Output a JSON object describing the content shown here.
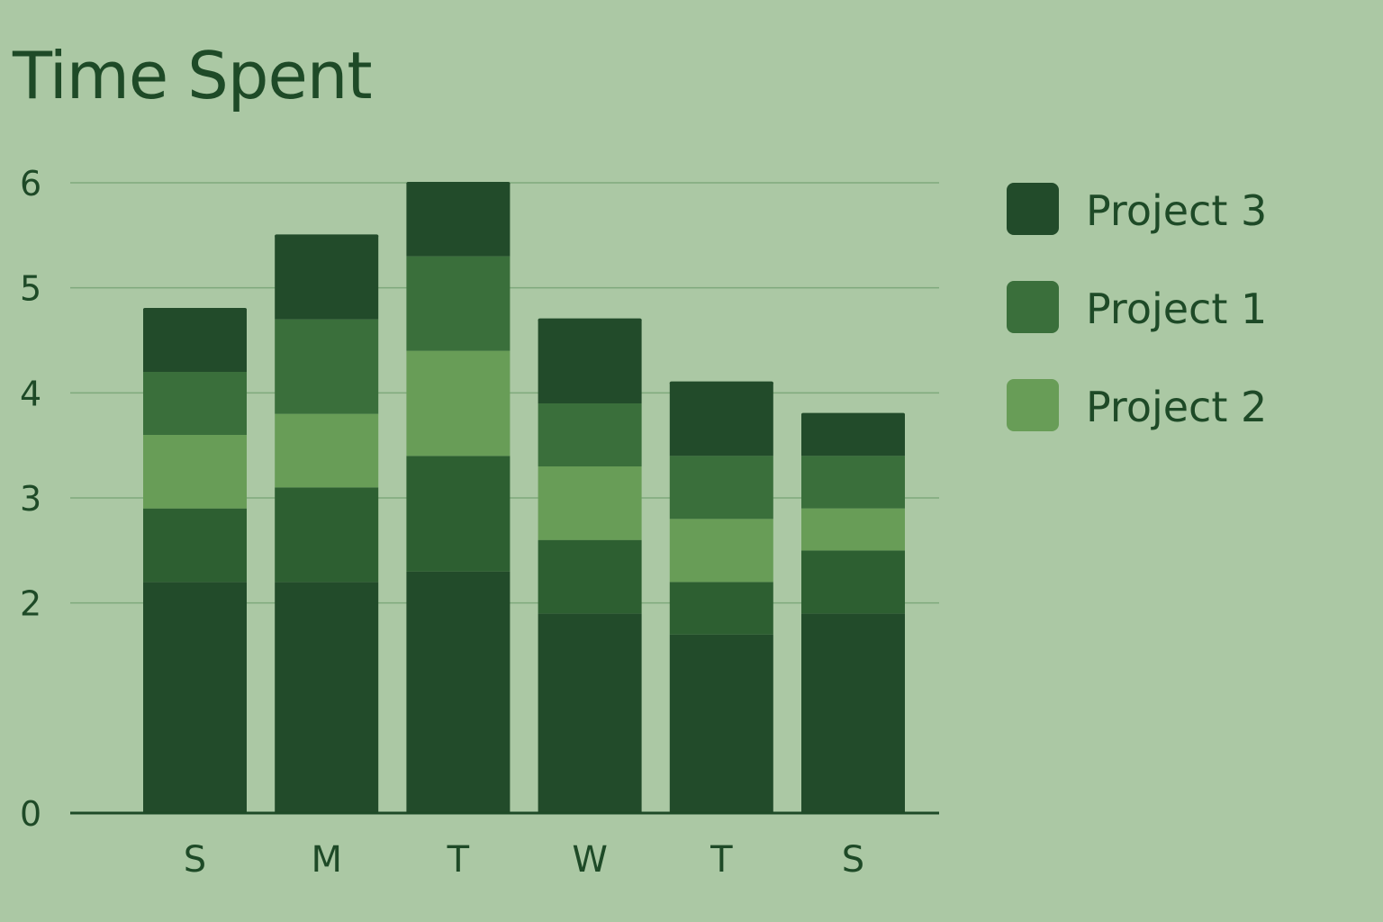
{
  "chart_data": {
    "type": "bar",
    "stacked": true,
    "title": "Time Spent",
    "xlabel": "",
    "ylabel": "",
    "categories": [
      "S",
      "M",
      "T",
      "W",
      "T",
      "S"
    ],
    "y_ticks": [
      "0",
      "2",
      "3",
      "4",
      "5",
      "6"
    ],
    "ylim": [
      0,
      6
    ],
    "grid": true,
    "legend_position": "right",
    "segments": [
      {
        "values": [
          2.2,
          2.2,
          2.3,
          1.9,
          1.7,
          1.9
        ],
        "color": "#224b2a"
      },
      {
        "values": [
          0.7,
          0.9,
          1.1,
          0.7,
          0.5,
          0.6
        ],
        "color": "#2d5f31"
      },
      {
        "values": [
          0.7,
          0.7,
          1.0,
          0.7,
          0.6,
          0.4
        ],
        "color": "#689d57"
      },
      {
        "values": [
          0.6,
          0.9,
          0.9,
          0.6,
          0.6,
          0.5
        ],
        "color": "#3a6f3b"
      },
      {
        "values": [
          0.6,
          0.8,
          0.7,
          0.8,
          0.7,
          0.4
        ],
        "color": "#224b2a"
      }
    ],
    "legend": [
      {
        "name": "Project 3",
        "color": "#224b2a"
      },
      {
        "name": "Project 1",
        "color": "#3a6f3b"
      },
      {
        "name": "Project 2",
        "color": "#689d57"
      }
    ],
    "colors": {
      "background": "#abc8a4",
      "text": "#1e4a27",
      "grid": "#7fa97c",
      "axis": "#1e4a27"
    }
  }
}
